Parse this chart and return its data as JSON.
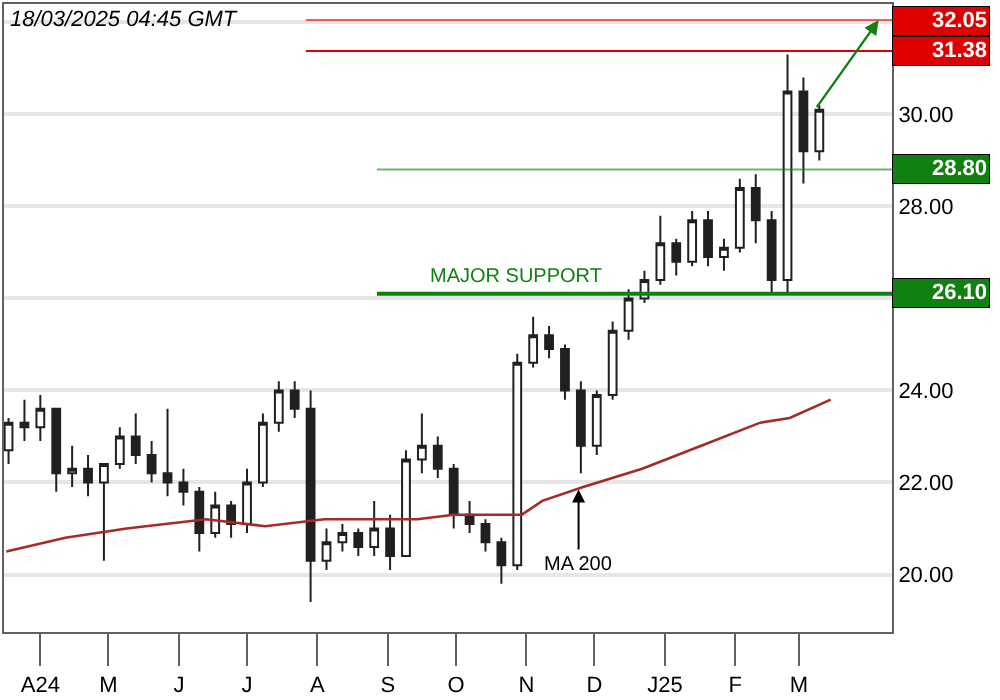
{
  "chart_data": {
    "type": "candlestick",
    "x": [
      "2024-03-18",
      "2024-03-25",
      "2024-04-01",
      "2024-04-08",
      "2024-04-15",
      "2024-04-22",
      "2024-04-29",
      "2024-05-06",
      "2024-05-13",
      "2024-05-20",
      "2024-05-27",
      "2024-06-03",
      "2024-06-10",
      "2024-06-17",
      "2024-06-24",
      "2024-07-01",
      "2024-07-08",
      "2024-07-15",
      "2024-07-22",
      "2024-07-29",
      "2024-08-05",
      "2024-08-12",
      "2024-08-19",
      "2024-08-26",
      "2024-09-02",
      "2024-09-09",
      "2024-09-16",
      "2024-09-23",
      "2024-09-30",
      "2024-10-07",
      "2024-10-14",
      "2024-10-21",
      "2024-10-28",
      "2024-11-04",
      "2024-11-11",
      "2024-11-18",
      "2024-11-25",
      "2024-12-02",
      "2024-12-09",
      "2024-12-16",
      "2024-12-23",
      "2024-12-30",
      "2025-01-06",
      "2025-01-13",
      "2025-01-20",
      "2025-01-27",
      "2025-02-03",
      "2025-02-10",
      "2025-02-17",
      "2025-02-24",
      "2025-03-03",
      "2025-03-10"
    ],
    "ohlc": [
      [
        22.7,
        23.4,
        22.4,
        23.3
      ],
      [
        23.3,
        23.8,
        22.9,
        23.2
      ],
      [
        23.2,
        23.9,
        22.9,
        23.6
      ],
      [
        23.6,
        23.6,
        21.8,
        22.2
      ],
      [
        22.2,
        22.8,
        21.9,
        22.3
      ],
      [
        22.3,
        22.6,
        21.7,
        22.0
      ],
      [
        22.0,
        22.4,
        20.3,
        22.4
      ],
      [
        22.4,
        23.2,
        22.3,
        23.0
      ],
      [
        23.0,
        23.5,
        22.4,
        22.6
      ],
      [
        22.6,
        22.9,
        22.0,
        22.2
      ],
      [
        22.2,
        23.6,
        21.7,
        22.0
      ],
      [
        22.0,
        22.3,
        21.5,
        21.8
      ],
      [
        21.8,
        21.9,
        20.5,
        20.9
      ],
      [
        20.9,
        21.8,
        20.8,
        21.5
      ],
      [
        21.5,
        21.6,
        20.8,
        21.1
      ],
      [
        21.1,
        22.3,
        20.9,
        22.0
      ],
      [
        22.0,
        23.5,
        21.9,
        23.3
      ],
      [
        23.3,
        24.2,
        23.1,
        24.0
      ],
      [
        24.0,
        24.2,
        23.4,
        23.6
      ],
      [
        23.6,
        24.0,
        19.4,
        20.3
      ],
      [
        20.3,
        21.0,
        20.1,
        20.7
      ],
      [
        20.7,
        21.1,
        20.5,
        20.9
      ],
      [
        20.9,
        21.0,
        20.4,
        20.6
      ],
      [
        20.6,
        21.6,
        20.4,
        21.0
      ],
      [
        21.0,
        21.3,
        20.1,
        20.4
      ],
      [
        20.4,
        22.7,
        20.4,
        22.5
      ],
      [
        22.5,
        23.5,
        22.2,
        22.8
      ],
      [
        22.8,
        23.0,
        22.1,
        22.3
      ],
      [
        22.3,
        22.4,
        21.0,
        21.3
      ],
      [
        21.3,
        21.6,
        20.9,
        21.1
      ],
      [
        21.1,
        21.2,
        20.5,
        20.7
      ],
      [
        20.7,
        20.8,
        19.8,
        20.2
      ],
      [
        20.2,
        24.8,
        20.1,
        24.6
      ],
      [
        24.6,
        25.6,
        24.5,
        25.2
      ],
      [
        25.2,
        25.4,
        24.7,
        24.9
      ],
      [
        24.9,
        25.0,
        23.8,
        24.0
      ],
      [
        24.0,
        24.2,
        22.2,
        22.8
      ],
      [
        22.8,
        24.0,
        22.6,
        23.9
      ],
      [
        23.9,
        25.5,
        23.8,
        25.3
      ],
      [
        25.3,
        26.2,
        25.1,
        26.0
      ],
      [
        26.0,
        26.6,
        25.9,
        26.4
      ],
      [
        26.4,
        27.8,
        26.3,
        27.2
      ],
      [
        27.2,
        27.3,
        26.5,
        26.8
      ],
      [
        26.8,
        27.9,
        26.7,
        27.7
      ],
      [
        27.7,
        27.9,
        26.7,
        26.9
      ],
      [
        26.9,
        27.3,
        26.6,
        27.1
      ],
      [
        27.1,
        28.6,
        27.0,
        28.4
      ],
      [
        28.4,
        28.7,
        27.2,
        27.7
      ],
      [
        27.7,
        27.9,
        26.1,
        26.4
      ],
      [
        26.4,
        31.3,
        26.1,
        30.5
      ],
      [
        30.5,
        30.8,
        28.5,
        29.2
      ],
      [
        29.2,
        30.2,
        29.0,
        30.1
      ]
    ],
    "color": "#202020",
    "series": [
      {
        "type": "line",
        "color": "#a52a2a",
        "x": [
          "2024-03-17",
          "2024-04-12",
          "2024-05-09",
          "2024-06-13",
          "2024-07-09",
          "2024-08-04",
          "2024-09-14",
          "2024-09-30",
          "2024-10-22",
          "2024-10-30",
          "2024-11-08",
          "2024-11-26",
          "2024-12-22",
          "2025-01-17",
          "2025-02-12",
          "2025-02-25",
          "2025-03-15"
        ],
        "values": [
          20.5,
          20.8,
          21.0,
          21.2,
          21.05,
          21.2,
          21.2,
          21.3,
          21.3,
          21.3,
          21.6,
          21.9,
          22.3,
          22.8,
          23.3,
          23.4,
          23.8
        ]
      }
    ],
    "xlim": [
      "2024-03-16",
      "2025-04-11"
    ],
    "xticks": [
      {
        "value": "2024-04-01",
        "label": "A24"
      },
      {
        "value": "2024-05-01",
        "label": "M"
      },
      {
        "value": "2024-06-01",
        "label": "J"
      },
      {
        "value": "2024-07-01",
        "label": "J"
      },
      {
        "value": "2024-08-01",
        "label": "A"
      },
      {
        "value": "2024-09-01",
        "label": "S"
      },
      {
        "value": "2024-10-01",
        "label": "O"
      },
      {
        "value": "2024-11-01",
        "label": "N"
      },
      {
        "value": "2024-12-01",
        "label": "D"
      },
      {
        "value": "2025-01-01",
        "label": "J25"
      },
      {
        "value": "2025-02-01",
        "label": "F"
      },
      {
        "value": "2025-03-01",
        "label": "M"
      }
    ],
    "ylim": [
      18.75,
      32.4
    ],
    "yticks": [
      {
        "value": 20,
        "label": "20.00"
      },
      {
        "value": 22,
        "label": "22.00"
      },
      {
        "value": 24,
        "label": "24.00"
      },
      {
        "value": 26,
        "label": null
      },
      {
        "value": 28,
        "label": "28.00"
      },
      {
        "value": 30,
        "label": "30.00"
      },
      {
        "value": 32,
        "label": null
      }
    ],
    "grid": "y",
    "ref_lines": [
      {
        "axis": "y",
        "value": 32.05,
        "label": "32.05",
        "color": "#e00000"
      },
      {
        "axis": "y",
        "value": 31.38,
        "label": "31.38",
        "color": "#e00000"
      },
      {
        "axis": "y",
        "value": 28.8,
        "label": "28.80",
        "color": "#108010"
      },
      {
        "axis": "y",
        "value": 26.1,
        "label": "26.10",
        "color": "#108010"
      }
    ],
    "annotations": [
      "18/03/2025 04:45 GMT",
      {
        "text": "MAJOR SUPPORT",
        "x": "2024-09-18",
        "y": 26.1
      },
      {
        "text": "MA 200",
        "x": "2024-11-24",
        "y": 21.85
      }
    ]
  }
}
